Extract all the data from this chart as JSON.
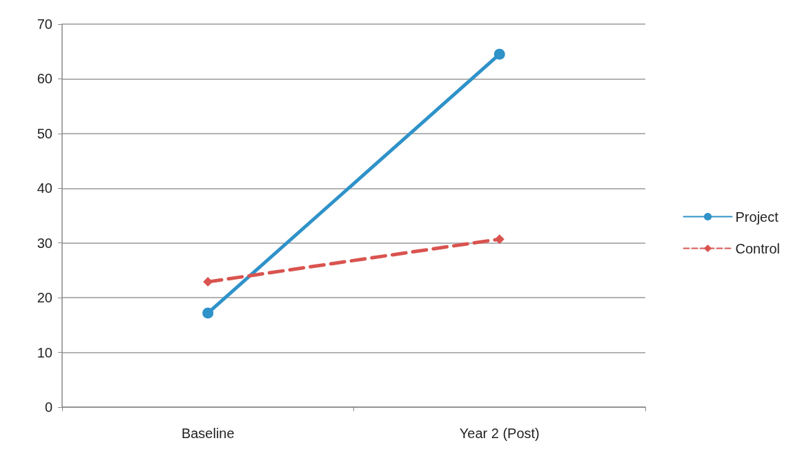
{
  "chart_data": {
    "type": "line",
    "categories": [
      "Baseline",
      "Year 2 (Post)"
    ],
    "series": [
      {
        "name": "Project",
        "color": "#2f92c9",
        "values": [
          17.2,
          64.5
        ],
        "marker": "circle",
        "line_style": "solid"
      },
      {
        "name": "Control",
        "color": "#d9534f",
        "values": [
          22.9,
          30.7
        ],
        "marker": "diamond",
        "line_style": "dashed"
      }
    ],
    "ylim": [
      0,
      70
    ],
    "yticks": [
      0,
      10,
      20,
      30,
      40,
      50,
      60,
      70
    ],
    "grid": "y",
    "legend": "right"
  }
}
